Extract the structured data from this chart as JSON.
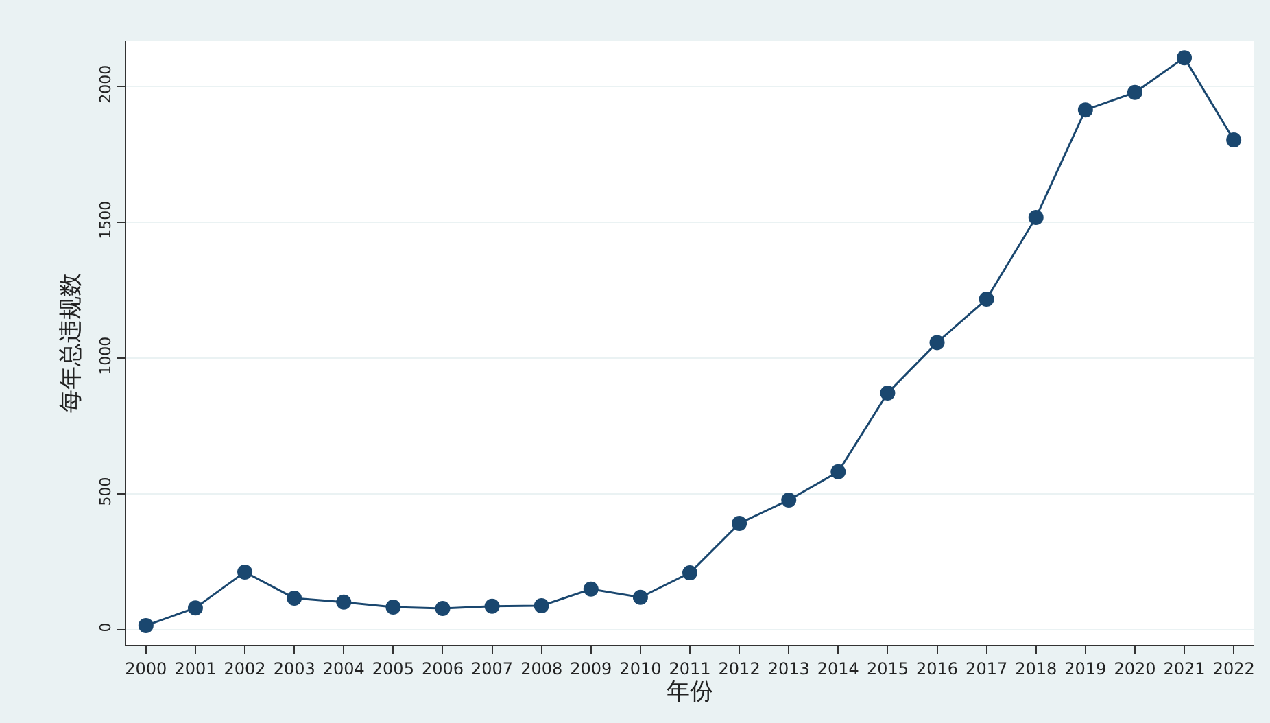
{
  "chart_data": {
    "type": "line",
    "xlabel": "年份",
    "ylabel": "每年总违规数",
    "categories": [
      "2000",
      "2001",
      "2002",
      "2003",
      "2004",
      "2005",
      "2006",
      "2007",
      "2008",
      "2009",
      "2010",
      "2011",
      "2012",
      "2013",
      "2014",
      "2015",
      "2016",
      "2017",
      "2018",
      "2019",
      "2020",
      "2021",
      "2022"
    ],
    "series": [
      {
        "color": "#1a476f",
        "values": [
          15,
          80,
          212,
          116,
          101,
          83,
          78,
          86,
          88,
          149,
          119,
          209,
          391,
          477,
          581,
          871,
          1057,
          1217,
          1518,
          1914,
          1978,
          2106,
          1803
        ]
      }
    ],
    "ylim": [
      -56,
      2167
    ],
    "yticks": [
      0,
      500,
      1000,
      1500,
      2000
    ],
    "grid": "y",
    "marker": "circle",
    "line_style": "solid",
    "legend": false
  }
}
